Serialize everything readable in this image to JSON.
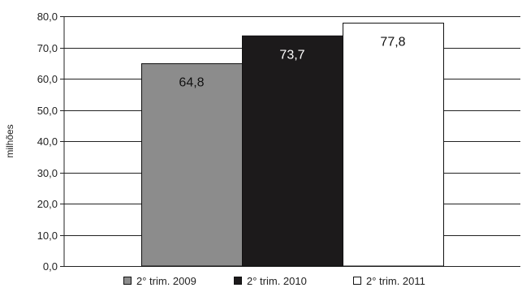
{
  "chart_data": {
    "type": "bar",
    "title": "",
    "xlabel": "",
    "ylabel": "milhões",
    "ylim": [
      0,
      80
    ],
    "yticks": [
      0,
      10,
      20,
      30,
      40,
      50,
      60,
      70,
      80
    ],
    "ytick_labels": [
      "0,0",
      "10,0",
      "20,0",
      "30,0",
      "40,0",
      "50,0",
      "60,0",
      "70,0",
      "80,0"
    ],
    "grid": true,
    "legend_position": "bottom",
    "series": [
      {
        "name": "2° trim. 2009",
        "value": 64.8,
        "label": "64,8",
        "color": "#8c8c8c",
        "label_color": "#111111"
      },
      {
        "name": "2° trim. 2010",
        "value": 73.7,
        "label": "73,7",
        "color": "#1c1a1b",
        "label_color": "#ffffff"
      },
      {
        "name": "2° trim. 2011",
        "value": 77.8,
        "label": "77,8",
        "color": "#ffffff",
        "label_color": "#111111"
      }
    ]
  }
}
